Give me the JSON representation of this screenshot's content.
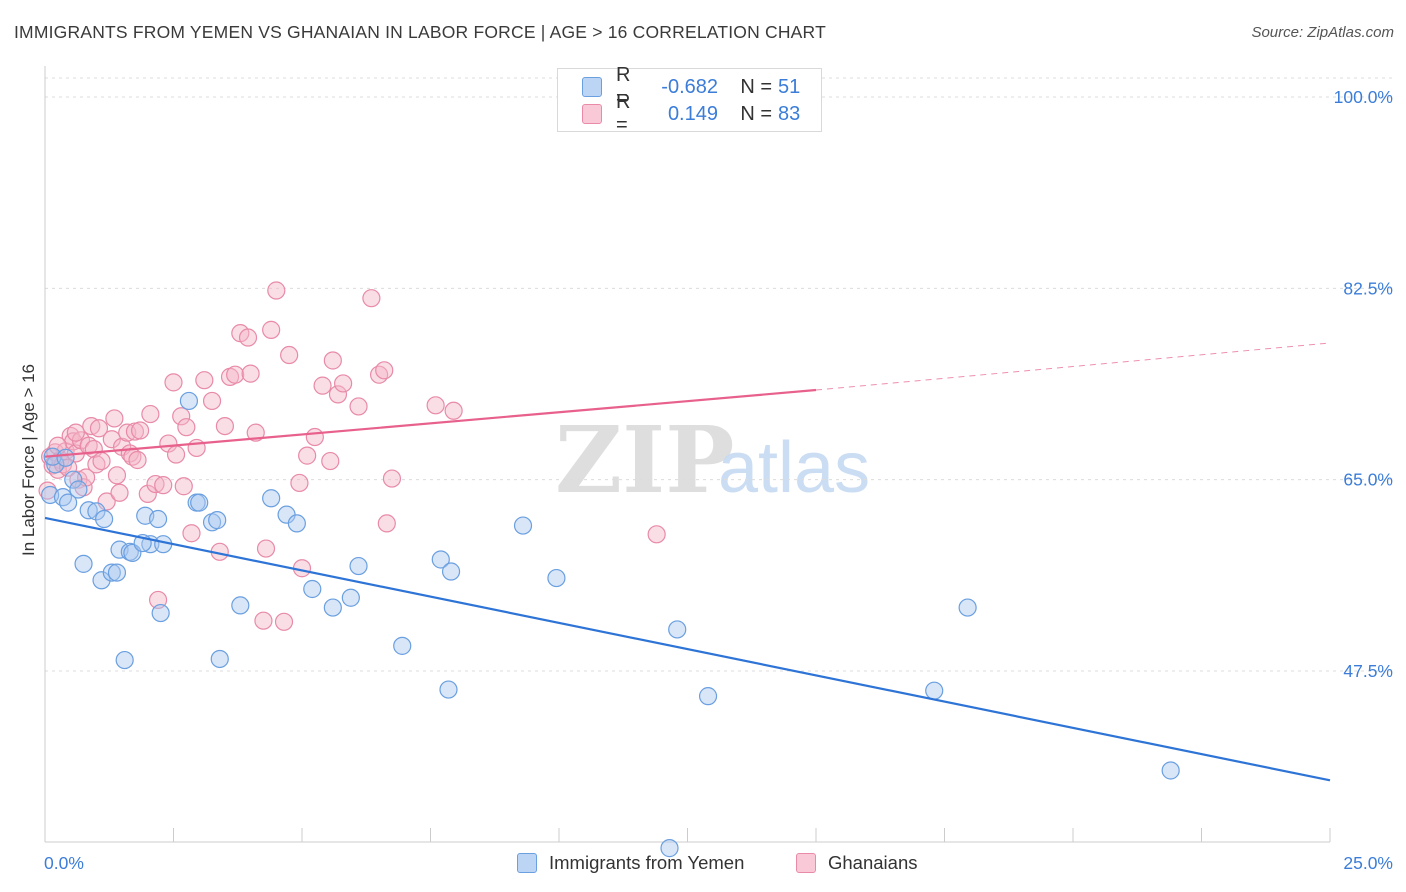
{
  "title": "IMMIGRANTS FROM YEMEN VS GHANAIAN IN LABOR FORCE | AGE > 16 CORRELATION CHART",
  "source": "Source: ZipAtlas.com",
  "watermark": {
    "zip": "ZIP",
    "atlas": "atlas"
  },
  "legend": {
    "rows": [
      {
        "r_label": "R =",
        "r_value": "-0.682",
        "n_label": "N =",
        "n_value": "51"
      },
      {
        "r_label": "R =",
        "r_value": "0.149",
        "n_label": "N =",
        "n_value": "83"
      }
    ]
  },
  "bottom_legend": [
    "Immigrants from Yemen",
    "Ghanaians"
  ],
  "colors": {
    "blue_fill": "#a8c8f0",
    "blue_stroke": "#6a9fe0",
    "blue_line": "#2e74d6",
    "pink_fill": "#f5b5c8",
    "pink_stroke": "#e88aa8",
    "pink_line": "#e8608c",
    "axis_label": "#3b7dd8",
    "grid": "#e0e0e0"
  },
  "chart_data": {
    "type": "scatter",
    "title": "IMMIGRANTS FROM YEMEN VS GHANAIAN IN LABOR FORCE | AGE > 16 CORRELATION CHART",
    "xlabel": "",
    "ylabel": "In Labor Force | Age > 16",
    "xlim": [
      0,
      25
    ],
    "ylim": [
      33,
      100
    ],
    "x_tick_labels": [
      "0.0%",
      "25.0%"
    ],
    "y_ticks": [
      47.5,
      65.0,
      82.5,
      100.0
    ],
    "y_tick_labels": [
      "47.5%",
      "65.0%",
      "82.5%",
      "100.0%"
    ],
    "grid": true,
    "legend_placement": "top-center",
    "series": [
      {
        "name": "Immigrants from Yemen",
        "r": -0.682,
        "n": 51,
        "trend": {
          "x0": 0,
          "y0": 61.5,
          "x1": 25,
          "y1": 37.5
        },
        "points": [
          [
            0.1,
            63.6
          ],
          [
            0.35,
            63.4
          ],
          [
            0.45,
            62.9
          ],
          [
            0.55,
            65.0
          ],
          [
            0.65,
            64.1
          ],
          [
            0.75,
            57.3
          ],
          [
            0.85,
            62.2
          ],
          [
            1.0,
            62.1
          ],
          [
            1.1,
            55.8
          ],
          [
            1.15,
            61.4
          ],
          [
            1.3,
            56.5
          ],
          [
            1.4,
            56.5
          ],
          [
            1.45,
            58.6
          ],
          [
            1.55,
            48.5
          ],
          [
            1.65,
            58.4
          ],
          [
            1.7,
            58.3
          ],
          [
            1.95,
            61.7
          ],
          [
            2.05,
            59.1
          ],
          [
            2.2,
            61.4
          ],
          [
            2.3,
            59.1
          ],
          [
            2.25,
            52.8
          ],
          [
            2.95,
            62.9
          ],
          [
            3.0,
            62.9
          ],
          [
            3.25,
            61.1
          ],
          [
            3.35,
            61.3
          ],
          [
            3.4,
            48.6
          ],
          [
            3.8,
            53.5
          ],
          [
            4.4,
            63.3
          ],
          [
            4.7,
            61.8
          ],
          [
            4.9,
            61.0
          ],
          [
            5.6,
            53.3
          ],
          [
            5.95,
            54.2
          ],
          [
            6.1,
            57.1
          ],
          [
            6.95,
            49.8
          ],
          [
            7.7,
            57.7
          ],
          [
            7.85,
            45.8
          ],
          [
            7.9,
            56.6
          ],
          [
            9.3,
            60.8
          ],
          [
            9.95,
            56.0
          ],
          [
            12.3,
            51.3
          ],
          [
            12.15,
            31.3
          ],
          [
            12.9,
            45.2
          ],
          [
            17.3,
            45.7
          ],
          [
            17.95,
            53.3
          ],
          [
            21.9,
            38.4
          ],
          [
            2.8,
            72.2
          ],
          [
            0.2,
            66.4
          ],
          [
            0.15,
            67.1
          ],
          [
            0.4,
            67.0
          ],
          [
            1.9,
            59.2
          ],
          [
            5.2,
            55.0
          ]
        ]
      },
      {
        "name": "Ghanaians",
        "r": 0.149,
        "n": 83,
        "trend": {
          "x0": 0,
          "y0": 67.1,
          "x1": 15,
          "y1": 73.2
        },
        "trend_ext": {
          "x0": 15,
          "y0": 73.2,
          "x1": 25,
          "y1": 77.5
        },
        "points": [
          [
            0.1,
            67.1
          ],
          [
            0.15,
            66.3
          ],
          [
            0.2,
            67.5
          ],
          [
            0.25,
            65.9
          ],
          [
            0.3,
            66.8
          ],
          [
            0.35,
            66.4
          ],
          [
            0.4,
            67.6
          ],
          [
            0.45,
            66.1
          ],
          [
            0.5,
            69.0
          ],
          [
            0.55,
            68.5
          ],
          [
            0.6,
            67.4
          ],
          [
            0.65,
            65.0
          ],
          [
            0.7,
            68.6
          ],
          [
            0.75,
            64.3
          ],
          [
            0.8,
            65.2
          ],
          [
            0.85,
            68.1
          ],
          [
            0.9,
            69.9
          ],
          [
            0.95,
            67.8
          ],
          [
            1.0,
            66.4
          ],
          [
            1.05,
            69.7
          ],
          [
            1.1,
            66.7
          ],
          [
            1.2,
            63.0
          ],
          [
            1.3,
            68.7
          ],
          [
            1.35,
            70.6
          ],
          [
            1.4,
            65.4
          ],
          [
            1.45,
            63.8
          ],
          [
            1.5,
            68.0
          ],
          [
            1.6,
            69.3
          ],
          [
            1.65,
            67.4
          ],
          [
            1.7,
            67.1
          ],
          [
            1.75,
            69.4
          ],
          [
            1.8,
            66.8
          ],
          [
            1.85,
            69.5
          ],
          [
            2.0,
            63.7
          ],
          [
            2.05,
            71.0
          ],
          [
            2.15,
            64.6
          ],
          [
            2.2,
            54.0
          ],
          [
            2.3,
            64.5
          ],
          [
            2.4,
            68.3
          ],
          [
            2.5,
            73.9
          ],
          [
            2.55,
            67.3
          ],
          [
            2.65,
            70.8
          ],
          [
            2.7,
            64.4
          ],
          [
            2.75,
            69.8
          ],
          [
            2.85,
            60.1
          ],
          [
            2.95,
            67.9
          ],
          [
            3.1,
            74.1
          ],
          [
            3.25,
            72.2
          ],
          [
            3.4,
            58.4
          ],
          [
            3.5,
            69.9
          ],
          [
            3.6,
            74.4
          ],
          [
            3.7,
            74.6
          ],
          [
            3.8,
            78.4
          ],
          [
            3.95,
            78.0
          ],
          [
            4.0,
            74.7
          ],
          [
            4.1,
            69.3
          ],
          [
            4.25,
            52.1
          ],
          [
            4.3,
            58.7
          ],
          [
            4.4,
            78.7
          ],
          [
            4.5,
            82.3
          ],
          [
            4.65,
            52.0
          ],
          [
            4.75,
            76.4
          ],
          [
            4.95,
            64.7
          ],
          [
            5.0,
            56.9
          ],
          [
            5.1,
            67.2
          ],
          [
            5.25,
            68.9
          ],
          [
            5.4,
            73.6
          ],
          [
            5.55,
            66.7
          ],
          [
            5.6,
            75.9
          ],
          [
            5.7,
            72.8
          ],
          [
            5.8,
            73.8
          ],
          [
            6.1,
            71.7
          ],
          [
            6.35,
            81.6
          ],
          [
            6.5,
            74.6
          ],
          [
            6.6,
            75.0
          ],
          [
            6.65,
            61.0
          ],
          [
            6.75,
            65.1
          ],
          [
            7.6,
            71.8
          ],
          [
            7.95,
            71.3
          ],
          [
            11.9,
            60.0
          ],
          [
            0.05,
            64.0
          ],
          [
            0.25,
            68.1
          ],
          [
            0.6,
            69.3
          ]
        ]
      }
    ]
  }
}
